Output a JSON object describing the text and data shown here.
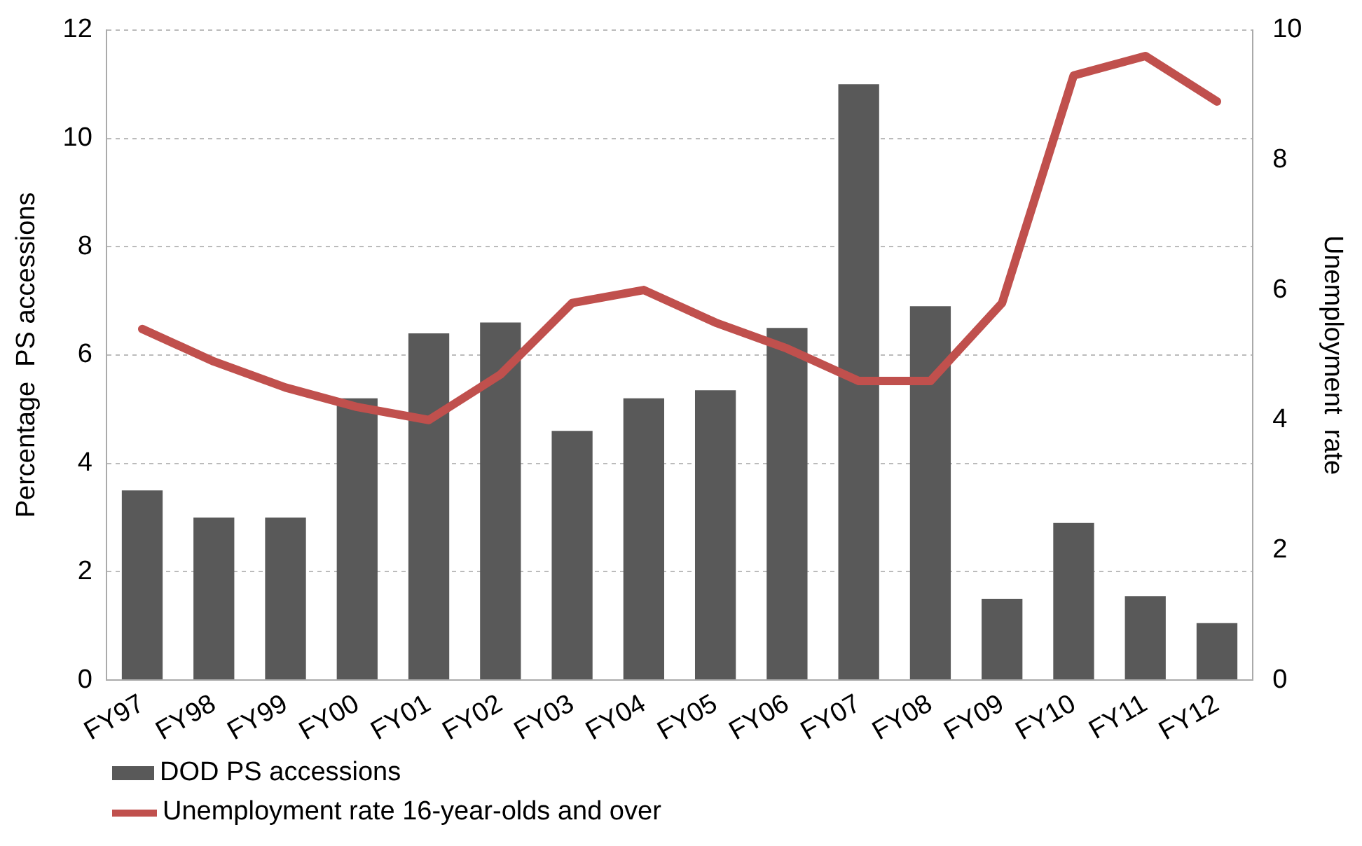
{
  "chart_data": {
    "type": "bar",
    "ylabel": "Percentage  PS accessions",
    "y2label": "Unemployment  rate",
    "categories": [
      "FY97",
      "FY98",
      "FY99",
      "FY00",
      "FY01",
      "FY02",
      "FY03",
      "FY04",
      "FY05",
      "FY06",
      "FY07",
      "FY08",
      "FY09",
      "FY10",
      "FY11",
      "FY12"
    ],
    "series": [
      {
        "name": "DOD PS accessions",
        "color": "#595959",
        "values": [
          3.5,
          3.0,
          3.0,
          5.2,
          6.4,
          6.6,
          4.6,
          5.2,
          5.35,
          6.5,
          11.0,
          6.9,
          1.5,
          2.9,
          1.55,
          1.05
        ]
      },
      {
        "name": "Unemployment rate 16-year-olds and over",
        "type": "line",
        "axis": "y2",
        "color": "#c0504d",
        "values": [
          5.4,
          4.9,
          4.5,
          4.2,
          4.0,
          4.7,
          5.8,
          6.0,
          5.5,
          5.1,
          4.6,
          4.6,
          5.8,
          9.3,
          9.6,
          8.9
        ]
      }
    ],
    "ylim": [
      0,
      12
    ],
    "yticks": [
      0,
      2,
      4,
      6,
      8,
      10,
      12
    ],
    "y2lim": [
      0,
      10
    ],
    "y2ticks": [
      0,
      2,
      4,
      6,
      8,
      10
    ],
    "grid": "y",
    "legend": "bottom left",
    "marker": "none",
    "line_style": "solid"
  }
}
